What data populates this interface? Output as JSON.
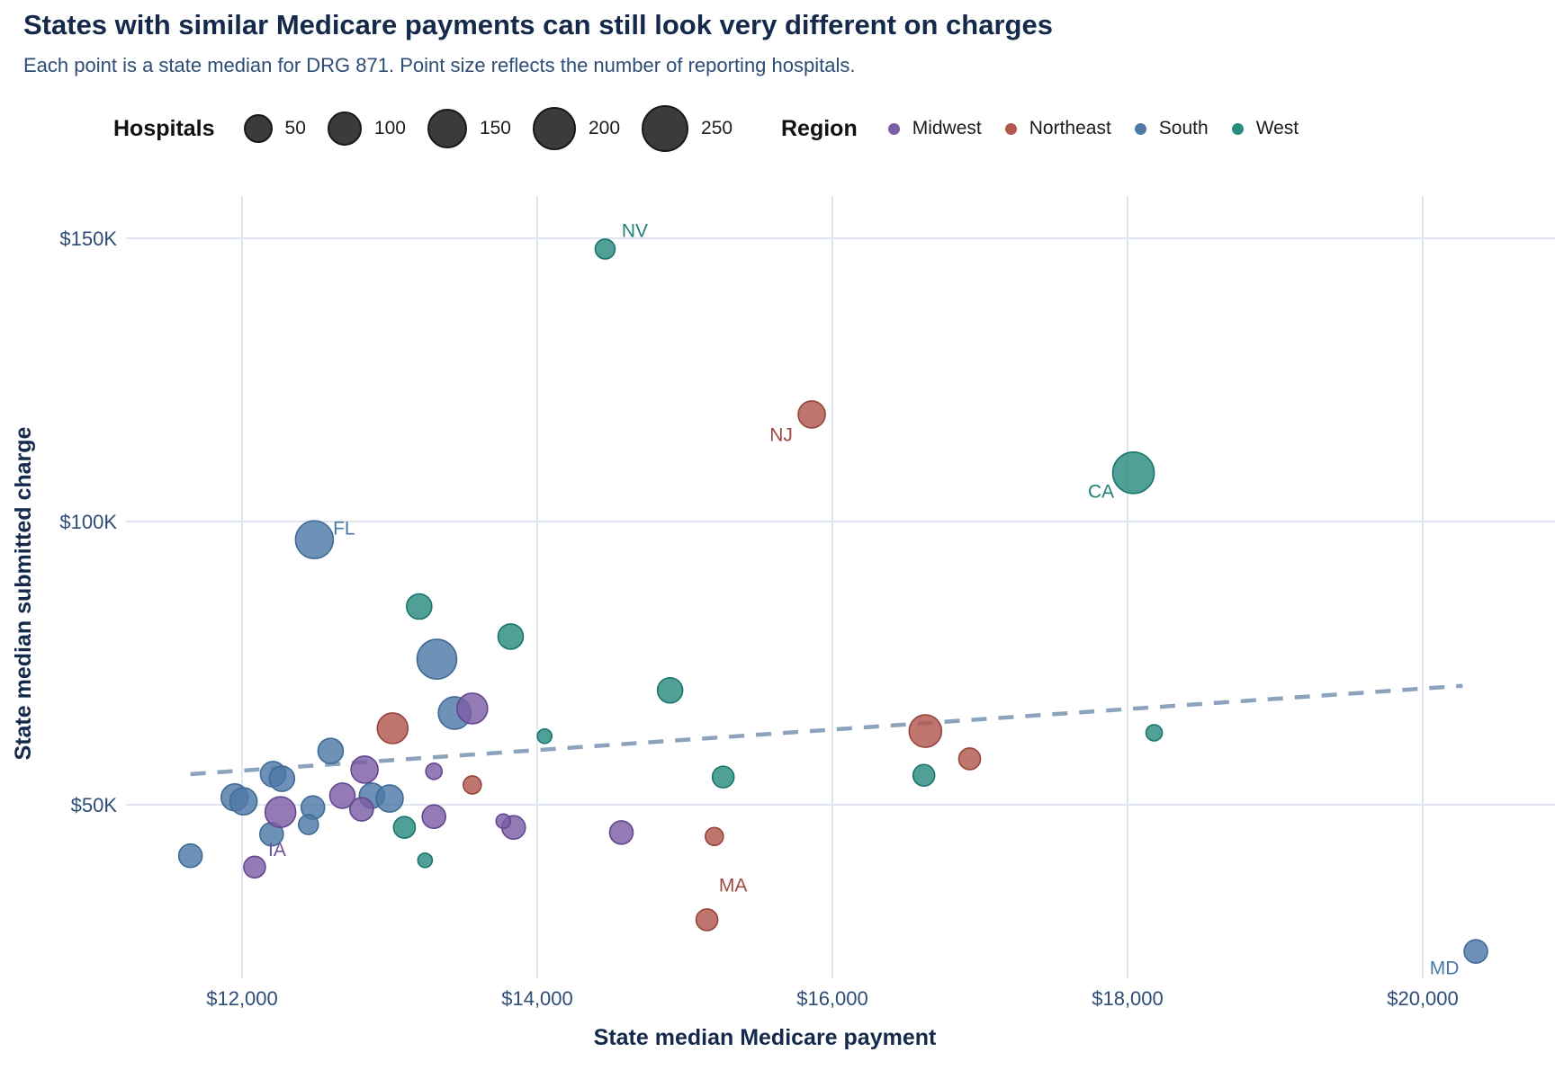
{
  "title": "States with similar Medicare payments can still look very different on charges",
  "subtitle": "Each point is a state median for DRG 871. Point size reflects the number of reporting hospitals.",
  "legend": {
    "hospitals": {
      "title": "Hospitals",
      "sizes": [
        {
          "label": "50",
          "r": 14
        },
        {
          "label": "100",
          "r": 17
        },
        {
          "label": "150",
          "r": 20
        },
        {
          "label": "200",
          "r": 22
        },
        {
          "label": "250",
          "r": 24
        }
      ]
    },
    "region": {
      "title": "Region",
      "items": [
        {
          "label": "Midwest",
          "color": "#7c5ea6"
        },
        {
          "label": "Northeast",
          "color": "#b1584f"
        },
        {
          "label": "South",
          "color": "#4e79a7"
        },
        {
          "label": "West",
          "color": "#2b8b80"
        }
      ]
    }
  },
  "colors": {
    "background": "#ffffff",
    "title": "#15294b",
    "subtitle": "#2d4d77",
    "grid": "#dfe5ef",
    "trend": "#8ba3bd",
    "tick_text": "#2d4d77"
  },
  "chart_data": {
    "type": "scatter",
    "title": "States with similar Medicare payments can still look very different on charges",
    "subtitle": "Each point is a state median for DRG 871. Point size reflects the number of reporting hospitals.",
    "xlabel": "State median Medicare payment",
    "ylabel": "State median submitted charge",
    "xlim": [
      11200,
      20900
    ],
    "ylim": [
      19000,
      158000
    ],
    "grid": true,
    "legend_position": "top",
    "size_encoding": "number of reporting hospitals",
    "x_ticks": [
      {
        "value": 12000,
        "label": "$12,000"
      },
      {
        "value": 14000,
        "label": "$14,000"
      },
      {
        "value": 16000,
        "label": "$16,000"
      },
      {
        "value": 18000,
        "label": "$18,000"
      },
      {
        "value": 20000,
        "label": "$20,000"
      }
    ],
    "y_ticks": [
      {
        "value": 150000,
        "label": "$150K"
      },
      {
        "value": 100000,
        "label": "$100K"
      },
      {
        "value": 50000,
        "label": "$50K"
      }
    ],
    "trend": {
      "style": "dashed",
      "x1": 11650,
      "y1": 55400,
      "x2": 20270,
      "y2": 71000
    },
    "series": [
      {
        "name": "South",
        "color": "#4e79a7",
        "stroke": "#3f6b95",
        "label_color": "#4878a8",
        "points": [
          {
            "state": "FL",
            "payment": 12490,
            "charge": 96800,
            "hospitals": 175,
            "r": 21,
            "label_dx": 33,
            "label_dy": -12
          },
          {
            "payment": 13320,
            "charge": 75700,
            "hospitals": 200,
            "r": 22
          },
          {
            "payment": 13440,
            "charge": 66200,
            "hospitals": 115,
            "r": 18
          },
          {
            "payment": 12600,
            "charge": 59500,
            "hospitals": 50,
            "r": 14
          },
          {
            "payment": 12210,
            "charge": 55400,
            "hospitals": 50,
            "r": 14
          },
          {
            "payment": 12270,
            "charge": 54600,
            "hospitals": 50,
            "r": 14
          },
          {
            "payment": 11950,
            "charge": 51300,
            "hospitals": 60,
            "r": 15
          },
          {
            "payment": 12010,
            "charge": 50600,
            "hospitals": 60,
            "r": 15
          },
          {
            "payment": 12880,
            "charge": 51600,
            "hospitals": 50,
            "r": 14
          },
          {
            "payment": 13000,
            "charge": 51100,
            "hospitals": 60,
            "r": 15
          },
          {
            "payment": 12480,
            "charge": 49500,
            "hospitals": 35,
            "r": 13
          },
          {
            "payment": 12450,
            "charge": 46500,
            "hospitals": 25,
            "r": 11
          },
          {
            "payment": 12200,
            "charge": 44800,
            "hospitals": 35,
            "r": 13
          },
          {
            "payment": 11650,
            "charge": 41000,
            "hospitals": 35,
            "r": 13
          },
          {
            "state": "MD",
            "payment": 20360,
            "charge": 24100,
            "hospitals": 35,
            "r": 13,
            "label_dx": -35,
            "label_dy": 19
          }
        ]
      },
      {
        "name": "Northeast",
        "color": "#b1584f",
        "stroke": "#96443c",
        "label_color": "#9c4a42",
        "points": [
          {
            "state": "NJ",
            "payment": 15860,
            "charge": 118900,
            "hospitals": 60,
            "r": 15,
            "label_dx": -34,
            "label_dy": 23
          },
          {
            "payment": 13020,
            "charge": 63500,
            "hospitals": 100,
            "r": 17
          },
          {
            "payment": 16630,
            "charge": 63000,
            "hospitals": 115,
            "r": 18
          },
          {
            "payment": 16930,
            "charge": 58100,
            "hospitals": 30,
            "r": 12
          },
          {
            "payment": 13560,
            "charge": 53500,
            "hospitals": 20,
            "r": 10
          },
          {
            "payment": 15200,
            "charge": 44400,
            "hospitals": 20,
            "r": 10
          },
          {
            "state": "MA",
            "payment": 15150,
            "charge": 29700,
            "hospitals": 30,
            "r": 12,
            "label_dx": 29,
            "label_dy": -38
          }
        ]
      },
      {
        "name": "Midwest",
        "color": "#7c5ea6",
        "stroke": "#634791",
        "label_color": "#6f4f9f",
        "points": [
          {
            "payment": 13560,
            "charge": 67000,
            "hospitals": 100,
            "r": 17
          },
          {
            "payment": 12260,
            "charge": 48700,
            "hospitals": 100,
            "r": 17
          },
          {
            "payment": 12830,
            "charge": 56200,
            "hospitals": 60,
            "r": 15
          },
          {
            "payment": 12680,
            "charge": 51600,
            "hospitals": 50,
            "r": 14
          },
          {
            "payment": 12810,
            "charge": 49200,
            "hospitals": 35,
            "r": 13
          },
          {
            "payment": 13300,
            "charge": 55900,
            "hospitals": 15,
            "r": 9
          },
          {
            "payment": 13300,
            "charge": 47900,
            "hospitals": 35,
            "r": 13
          },
          {
            "payment": 13840,
            "charge": 46000,
            "hospitals": 35,
            "r": 13
          },
          {
            "payment": 13770,
            "charge": 47100,
            "hospitals": 10,
            "r": 8
          },
          {
            "payment": 14570,
            "charge": 45100,
            "hospitals": 35,
            "r": 13
          },
          {
            "state": "IA",
            "payment": 12085,
            "charge": 39000,
            "hospitals": 30,
            "r": 12,
            "label_dx": 25,
            "label_dy": -19
          }
        ]
      },
      {
        "name": "West",
        "color": "#2b8b80",
        "stroke": "#19756b",
        "label_color": "#1e7f76",
        "points": [
          {
            "state": "NV",
            "payment": 14460,
            "charge": 148100,
            "hospitals": 25,
            "r": 11,
            "label_dx": 33,
            "label_dy": -20
          },
          {
            "state": "CA",
            "payment": 18040,
            "charge": 108600,
            "hospitals": 225,
            "r": 23,
            "label_dx": -36,
            "label_dy": 21
          },
          {
            "payment": 13200,
            "charge": 85000,
            "hospitals": 50,
            "r": 14
          },
          {
            "payment": 13820,
            "charge": 79700,
            "hospitals": 50,
            "r": 14
          },
          {
            "payment": 14900,
            "charge": 70200,
            "hospitals": 50,
            "r": 14
          },
          {
            "payment": 14050,
            "charge": 62100,
            "hospitals": 10,
            "r": 8
          },
          {
            "payment": 18180,
            "charge": 62700,
            "hospitals": 15,
            "r": 9
          },
          {
            "payment": 15260,
            "charge": 54900,
            "hospitals": 30,
            "r": 12
          },
          {
            "payment": 16620,
            "charge": 55200,
            "hospitals": 30,
            "r": 12
          },
          {
            "payment": 13100,
            "charge": 46000,
            "hospitals": 30,
            "r": 12
          },
          {
            "payment": 13240,
            "charge": 40200,
            "hospitals": 10,
            "r": 8
          }
        ]
      }
    ]
  }
}
